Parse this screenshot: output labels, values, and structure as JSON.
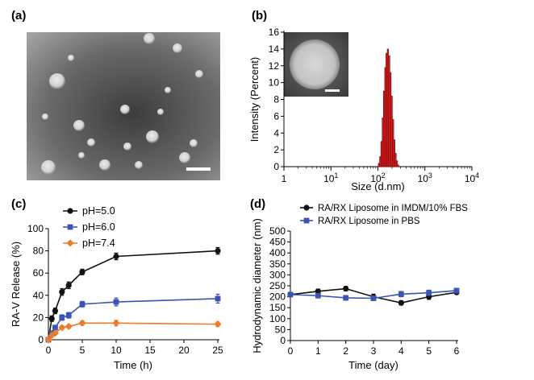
{
  "panels": {
    "a": {
      "label": "(a)",
      "image": "TEM micrograph of liposomes with scale bar"
    },
    "b": {
      "label": "(b)",
      "inset": "TEM image of single liposome with scale bar"
    },
    "c": {
      "label": "(c)"
    },
    "d": {
      "label": "(d)"
    }
  },
  "colors": {
    "black": "#111111",
    "blue": "#3a55b4",
    "orange": "#ee7a2c",
    "red_bar": "#dd1f1f",
    "bar_edge": "#7a0a0a"
  },
  "chart_data": [
    {
      "id": "b",
      "type": "bar",
      "title": "",
      "xlabel": "Size (d.nm)",
      "ylabel": "Intensity (Percent)",
      "xscale": "log",
      "xlim": [
        1,
        10000
      ],
      "ylim": [
        0,
        16
      ],
      "yticks": [
        0,
        2,
        4,
        6,
        8,
        10,
        12,
        14,
        16
      ],
      "xticklabels": [
        {
          "base": "1",
          "exp": ""
        },
        {
          "base": "10",
          "exp": "1"
        },
        {
          "base": "10",
          "exp": "2"
        },
        {
          "base": "10",
          "exp": "3"
        },
        {
          "base": "10",
          "exp": "4"
        }
      ],
      "x": [
        105,
        112,
        119,
        127,
        135,
        144,
        153,
        163,
        174,
        185,
        197,
        210,
        224,
        238,
        254,
        270
      ],
      "values": [
        0.4,
        1.2,
        3.0,
        5.8,
        9.0,
        11.8,
        13.5,
        14.0,
        13.2,
        11.2,
        8.4,
        5.6,
        3.2,
        1.6,
        0.7,
        0.2
      ]
    },
    {
      "id": "c",
      "type": "line",
      "xlabel": "Time (h)",
      "ylabel": "RA-V Release (%)",
      "xlim": [
        0,
        25
      ],
      "ylim": [
        0,
        100
      ],
      "xticks": [
        0,
        5,
        10,
        15,
        20,
        25
      ],
      "yticks": [
        0,
        20,
        40,
        60,
        80,
        100
      ],
      "legend_position": "top-left",
      "x": [
        0,
        0.5,
        1,
        2,
        3,
        5,
        10,
        25
      ],
      "series": [
        {
          "name": "pH=5.0",
          "color": "#111111",
          "marker": "circle",
          "values": [
            0,
            19,
            26,
            43,
            49,
            61,
            75,
            80
          ],
          "errors": [
            0,
            2.5,
            2.5,
            3,
            3,
            2.5,
            3,
            3
          ]
        },
        {
          "name": "pH=6.0",
          "color": "#3a55b4",
          "marker": "square",
          "values": [
            0,
            6,
            11,
            20,
            22,
            32,
            34,
            37
          ],
          "errors": [
            0,
            2,
            2,
            2.5,
            2.5,
            2.5,
            3.5,
            4
          ]
        },
        {
          "name": "pH=7.4",
          "color": "#ee7a2c",
          "marker": "diamond",
          "values": [
            0,
            4,
            6,
            11,
            12,
            15,
            15,
            14
          ],
          "errors": [
            0,
            1.5,
            1.5,
            1.5,
            1.5,
            2,
            2.5,
            2
          ]
        }
      ]
    },
    {
      "id": "d",
      "type": "line",
      "xlabel": "Time (day)",
      "ylabel": "Hydrodynamic diameter (nm)",
      "xlim": [
        0,
        6
      ],
      "ylim": [
        0,
        500
      ],
      "xticks": [
        0,
        1,
        2,
        3,
        4,
        5,
        6
      ],
      "yticks": [
        0,
        50,
        100,
        150,
        200,
        250,
        300,
        350,
        400,
        450,
        500
      ],
      "legend_position": "top",
      "x": [
        0,
        1,
        2,
        3,
        4,
        5,
        6
      ],
      "series": [
        {
          "name": "RA/RX Liposome in IMDM/10% FBS",
          "color": "#111111",
          "marker": "circle",
          "values": [
            210,
            225,
            237,
            200,
            172,
            200,
            220
          ],
          "errors": [
            8,
            10,
            10,
            12,
            10,
            12,
            8
          ]
        },
        {
          "name": "RA/RX Liposome in PBS",
          "color": "#3a55b4",
          "marker": "square",
          "values": [
            210,
            205,
            195,
            193,
            212,
            218,
            228
          ],
          "errors": [
            8,
            10,
            10,
            10,
            12,
            12,
            10
          ]
        }
      ]
    }
  ]
}
